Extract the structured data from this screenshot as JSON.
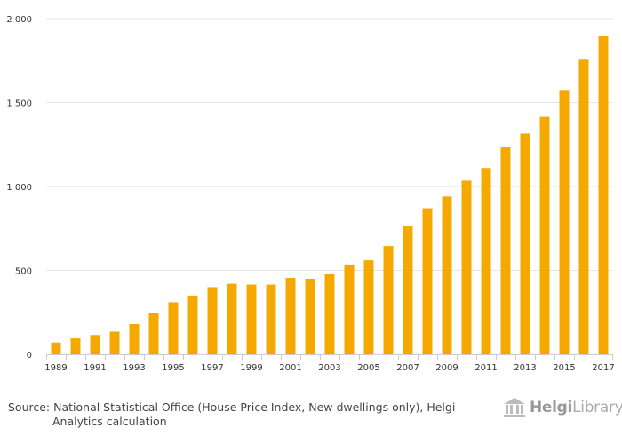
{
  "chart_data": {
    "type": "bar",
    "title": "",
    "xlabel": "",
    "ylabel": "",
    "ylim": [
      0,
      2000
    ],
    "yticks": [
      "0",
      "500",
      "1 000",
      "1 500",
      "2 000"
    ],
    "ytick_values": [
      0,
      500,
      1000,
      1500,
      2000
    ],
    "xtick_labels": [
      "1989",
      "1991",
      "1993",
      "1995",
      "1997",
      "1999",
      "2001",
      "2003",
      "2005",
      "2007",
      "2009",
      "2011",
      "2013",
      "2015",
      "2017"
    ],
    "categories": [
      1989,
      1990,
      1991,
      1992,
      1993,
      1994,
      1995,
      1996,
      1997,
      1998,
      1999,
      2000,
      2001,
      2002,
      2003,
      2004,
      2005,
      2006,
      2007,
      2008,
      2009,
      2010,
      2011,
      2012,
      2013,
      2014,
      2015,
      2016,
      2017
    ],
    "values": [
      70,
      95,
      115,
      135,
      180,
      245,
      310,
      350,
      400,
      420,
      415,
      415,
      455,
      450,
      480,
      535,
      560,
      645,
      765,
      870,
      940,
      1035,
      1110,
      1235,
      1315,
      1415,
      1575,
      1755,
      1895
    ],
    "grid": true,
    "bar_color": "#f5a800",
    "grid_color": "#e6e6e6",
    "axis_color": "#cccccc"
  },
  "footer": {
    "source_line1": "Source: National Statistical Office (House Price Index, New dwellings only), Helgi",
    "source_line2": "Analytics calculation"
  },
  "logo": {
    "brand_bold": "Helgi",
    "brand_rest": "Library",
    "icon": "library-building-icon"
  }
}
